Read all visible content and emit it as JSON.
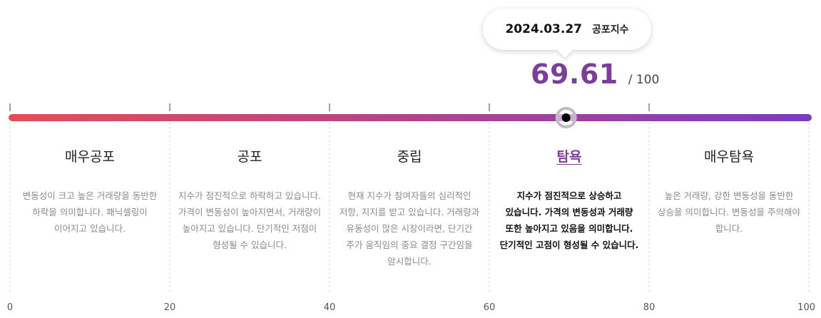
{
  "tooltip": {
    "date": "2024.03.27",
    "label": "공포지수"
  },
  "score": {
    "value": "69.61",
    "max_label": "/ 100"
  },
  "chart_data": {
    "type": "gauge",
    "value": 69.61,
    "min": 0,
    "max": 100,
    "ticks": [
      0,
      20,
      40,
      60,
      80,
      100
    ],
    "tick_labels": [
      "0",
      "20",
      "40",
      "60",
      "80",
      "100"
    ],
    "gradient_colors": [
      "#e74c53",
      "#7a3cc0"
    ]
  },
  "zones": [
    {
      "name": "매우공포",
      "desc": "변동성이 크고 높은 거래량을 동반한 하락을 의미합니다. 패닉셀링이 이어지고 있습니다.",
      "active": false
    },
    {
      "name": "공포",
      "desc": "지수가 점진적으로 하락하고 있습니다. 가격이 변동성이 높아지면서, 거래량이 높아지고 있습니다. 단기적인 저점이 형성될 수 있습니다.",
      "active": false
    },
    {
      "name": "중립",
      "desc": "현재 지수가 참여자들의 심리적인 저항, 지지를 받고 있습니다. 거래량과 유동성이 많은 시장이라면, 단기간 주가 움직임의 중요 결정 구간임을 암시합니다.",
      "active": false
    },
    {
      "name": "탐욕",
      "desc": "지수가 점진적으로 상승하고 있습니다. 가격의 변동성과 거래량 또한 높아지고 있음을 의미합니다. 단기적인 고점이 형성될 수 있습니다.",
      "active": true
    },
    {
      "name": "매우탐욕",
      "desc": "높은 거래량, 강한 변동성을 동반한 상승을 의미합니다. 변동성을 주의해야 합니다.",
      "active": false
    }
  ]
}
